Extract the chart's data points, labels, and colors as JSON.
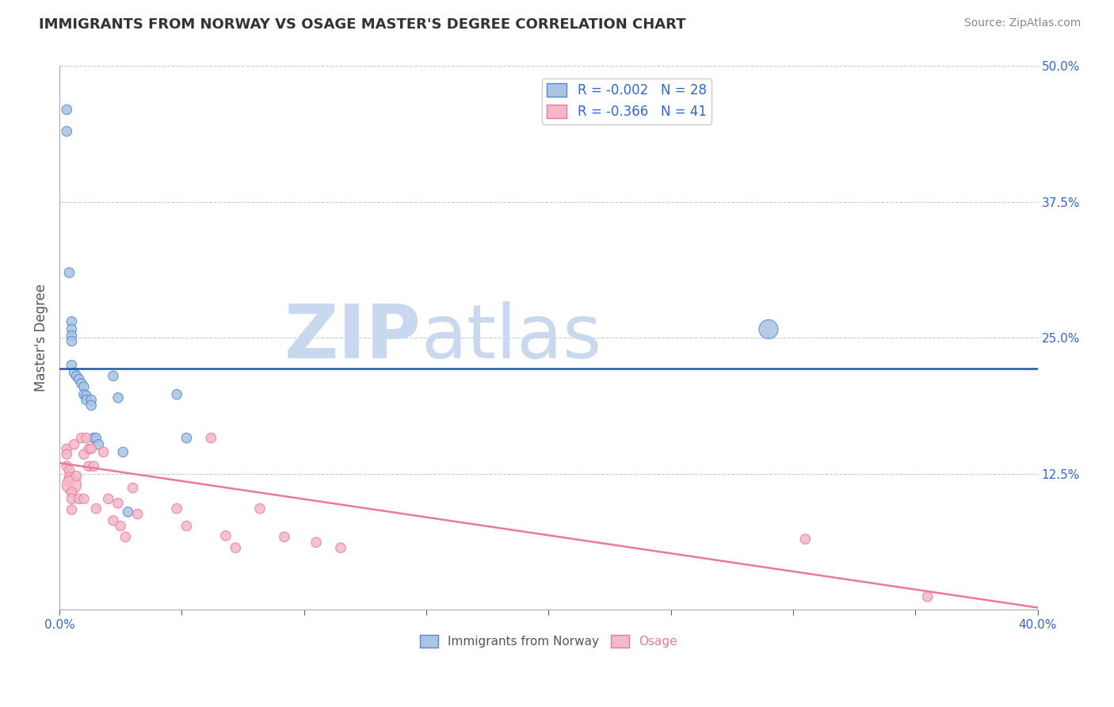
{
  "title": "IMMIGRANTS FROM NORWAY VS OSAGE MASTER'S DEGREE CORRELATION CHART",
  "source": "Source: ZipAtlas.com",
  "ylabel": "Master's Degree",
  "xlim": [
    0.0,
    0.4
  ],
  "ylim": [
    0.0,
    0.5
  ],
  "xticks": [
    0.0,
    0.05,
    0.1,
    0.15,
    0.2,
    0.25,
    0.3,
    0.35,
    0.4
  ],
  "xticklabels": [
    "0.0%",
    "",
    "",
    "",
    "",
    "",
    "",
    "",
    "40.0%"
  ],
  "yticks_right": [
    0.0,
    0.125,
    0.25,
    0.375,
    0.5
  ],
  "ytick_right_labels": [
    "",
    "12.5%",
    "25.0%",
    "37.5%",
    "50.0%"
  ],
  "norway_R": -0.002,
  "norway_N": 28,
  "osage_R": -0.366,
  "osage_N": 41,
  "norway_color": "#aac4e2",
  "norway_edge_color": "#5588cc",
  "osage_color": "#f5b8c8",
  "osage_edge_color": "#e87a9a",
  "trend_norway_color": "#2255aa",
  "trend_osage_color": "#e87a9a",
  "watermark_zip_color": "#c8d8ee",
  "watermark_atlas_color": "#c8d8ee",
  "legend_norway_label": "R = -0.002   N = 28",
  "legend_osage_label": "R = -0.366   N = 41",
  "norway_points_x": [
    0.003,
    0.003,
    0.004,
    0.005,
    0.005,
    0.005,
    0.005,
    0.005,
    0.006,
    0.007,
    0.008,
    0.009,
    0.01,
    0.01,
    0.011,
    0.011,
    0.013,
    0.013,
    0.014,
    0.015,
    0.016,
    0.022,
    0.024,
    0.026,
    0.028,
    0.048,
    0.052,
    0.29
  ],
  "norway_points_y": [
    0.46,
    0.44,
    0.31,
    0.265,
    0.258,
    0.252,
    0.247,
    0.225,
    0.218,
    0.215,
    0.212,
    0.208,
    0.205,
    0.198,
    0.197,
    0.193,
    0.193,
    0.188,
    0.158,
    0.158,
    0.152,
    0.215,
    0.195,
    0.145,
    0.09,
    0.198,
    0.158,
    0.258
  ],
  "norway_sizes": [
    80,
    80,
    80,
    80,
    80,
    80,
    80,
    80,
    80,
    80,
    80,
    80,
    80,
    80,
    80,
    80,
    80,
    80,
    80,
    80,
    80,
    80,
    80,
    80,
    80,
    80,
    80,
    300
  ],
  "osage_points_x": [
    0.003,
    0.003,
    0.003,
    0.004,
    0.004,
    0.004,
    0.005,
    0.005,
    0.005,
    0.005,
    0.006,
    0.007,
    0.008,
    0.009,
    0.01,
    0.01,
    0.011,
    0.012,
    0.012,
    0.013,
    0.014,
    0.015,
    0.018,
    0.02,
    0.022,
    0.024,
    0.025,
    0.027,
    0.03,
    0.032,
    0.048,
    0.052,
    0.062,
    0.068,
    0.072,
    0.082,
    0.092,
    0.105,
    0.115,
    0.305,
    0.355
  ],
  "osage_points_y": [
    0.148,
    0.143,
    0.132,
    0.128,
    0.122,
    0.118,
    0.115,
    0.108,
    0.102,
    0.092,
    0.152,
    0.123,
    0.102,
    0.158,
    0.143,
    0.102,
    0.158,
    0.148,
    0.132,
    0.148,
    0.132,
    0.093,
    0.145,
    0.102,
    0.082,
    0.098,
    0.077,
    0.067,
    0.112,
    0.088,
    0.093,
    0.077,
    0.158,
    0.068,
    0.057,
    0.093,
    0.067,
    0.062,
    0.057,
    0.065,
    0.012
  ],
  "osage_sizes": [
    80,
    80,
    80,
    80,
    80,
    80,
    300,
    80,
    80,
    80,
    80,
    80,
    80,
    80,
    80,
    80,
    80,
    80,
    80,
    80,
    80,
    80,
    80,
    80,
    80,
    80,
    80,
    80,
    80,
    80,
    80,
    80,
    80,
    80,
    80,
    80,
    80,
    80,
    80,
    80,
    80
  ],
  "norway_trend_y_start": 0.222,
  "norway_trend_y_end": 0.222,
  "osage_trend_y_start": 0.135,
  "osage_trend_y_end": 0.002,
  "background_color": "#ffffff",
  "grid_color": "#cccccc"
}
